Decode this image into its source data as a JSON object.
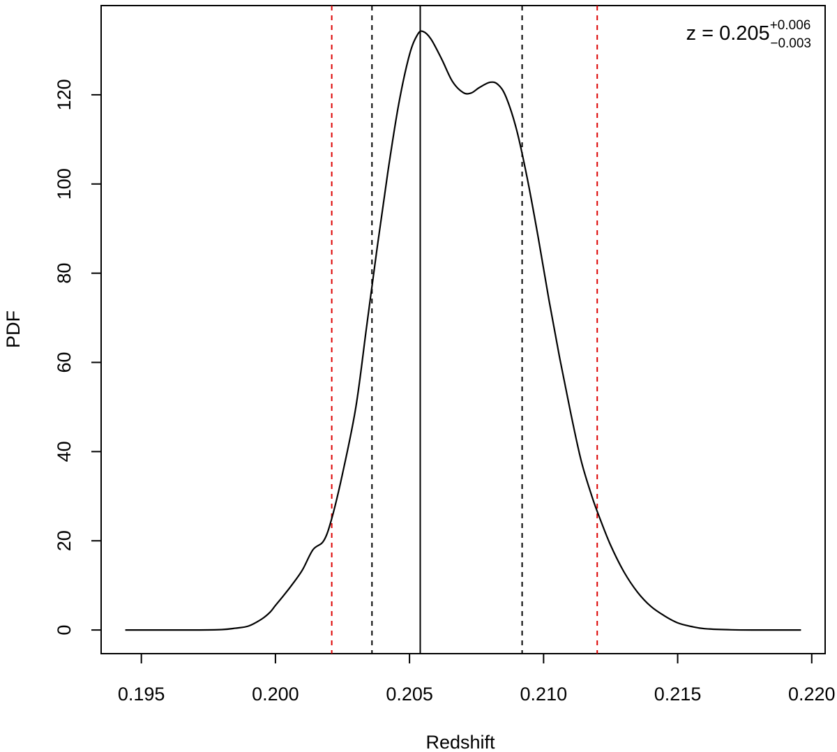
{
  "chart_data": {
    "type": "line",
    "title": "",
    "xlabel": "Redshift",
    "ylabel": "PDF",
    "xlim": [
      0.1935,
      0.2205
    ],
    "ylim": [
      -5.3,
      140
    ],
    "x_ticks": [
      0.195,
      0.2,
      0.205,
      0.21,
      0.215,
      0.22
    ],
    "x_tick_labels": [
      "0.195",
      "0.200",
      "0.205",
      "0.210",
      "0.215",
      "0.220"
    ],
    "y_ticks": [
      0,
      20,
      40,
      60,
      80,
      100,
      120
    ],
    "y_tick_labels": [
      "0",
      "20",
      "40",
      "60",
      "80",
      "100",
      "120"
    ],
    "grid": false,
    "series": [
      {
        "color": "#000000",
        "x": [
          0.1944,
          0.197,
          0.198,
          0.1985,
          0.199,
          0.1995,
          0.1998,
          0.2,
          0.2003,
          0.2006,
          0.201,
          0.2014,
          0.2018,
          0.2021,
          0.2025,
          0.203,
          0.2034,
          0.2038,
          0.2042,
          0.2046,
          0.205,
          0.2053,
          0.2055,
          0.2058,
          0.2062,
          0.2066,
          0.207,
          0.2073,
          0.2076,
          0.208,
          0.2083,
          0.2086,
          0.209,
          0.2094,
          0.2098,
          0.2102,
          0.2106,
          0.211,
          0.2114,
          0.2118,
          0.2121,
          0.2125,
          0.213,
          0.2135,
          0.214,
          0.2145,
          0.215,
          0.2155,
          0.216,
          0.217,
          0.218,
          0.2196
        ],
        "y": [
          0,
          0,
          0.1,
          0.4,
          0.9,
          2.5,
          4,
          5.5,
          7.7,
          10,
          13.4,
          18,
          20,
          25,
          35,
          50,
          68,
          86,
          103,
          118,
          129,
          133.5,
          134.2,
          132.5,
          128,
          123,
          120.5,
          120.4,
          121.6,
          122.8,
          122.3,
          119.5,
          112,
          101,
          88,
          74,
          61,
          49,
          38,
          30,
          25,
          19,
          13,
          8.5,
          5.3,
          3.2,
          1.6,
          0.8,
          0.3,
          0.05,
          0,
          0
        ]
      }
    ],
    "vlines": [
      {
        "x": 0.2054,
        "color": "#000000",
        "style": "solid"
      },
      {
        "x": 0.2036,
        "color": "#000000",
        "style": "dashed"
      },
      {
        "x": 0.2092,
        "color": "#000000",
        "style": "dashed"
      },
      {
        "x": 0.2021,
        "color": "#dd0000",
        "style": "dashed"
      },
      {
        "x": 0.212,
        "color": "#dd0000",
        "style": "dashed"
      }
    ],
    "annotation": {
      "prefix": "z = 0.205",
      "sup": "+0.006",
      "sub": "−0.003",
      "position": "top-right"
    }
  }
}
